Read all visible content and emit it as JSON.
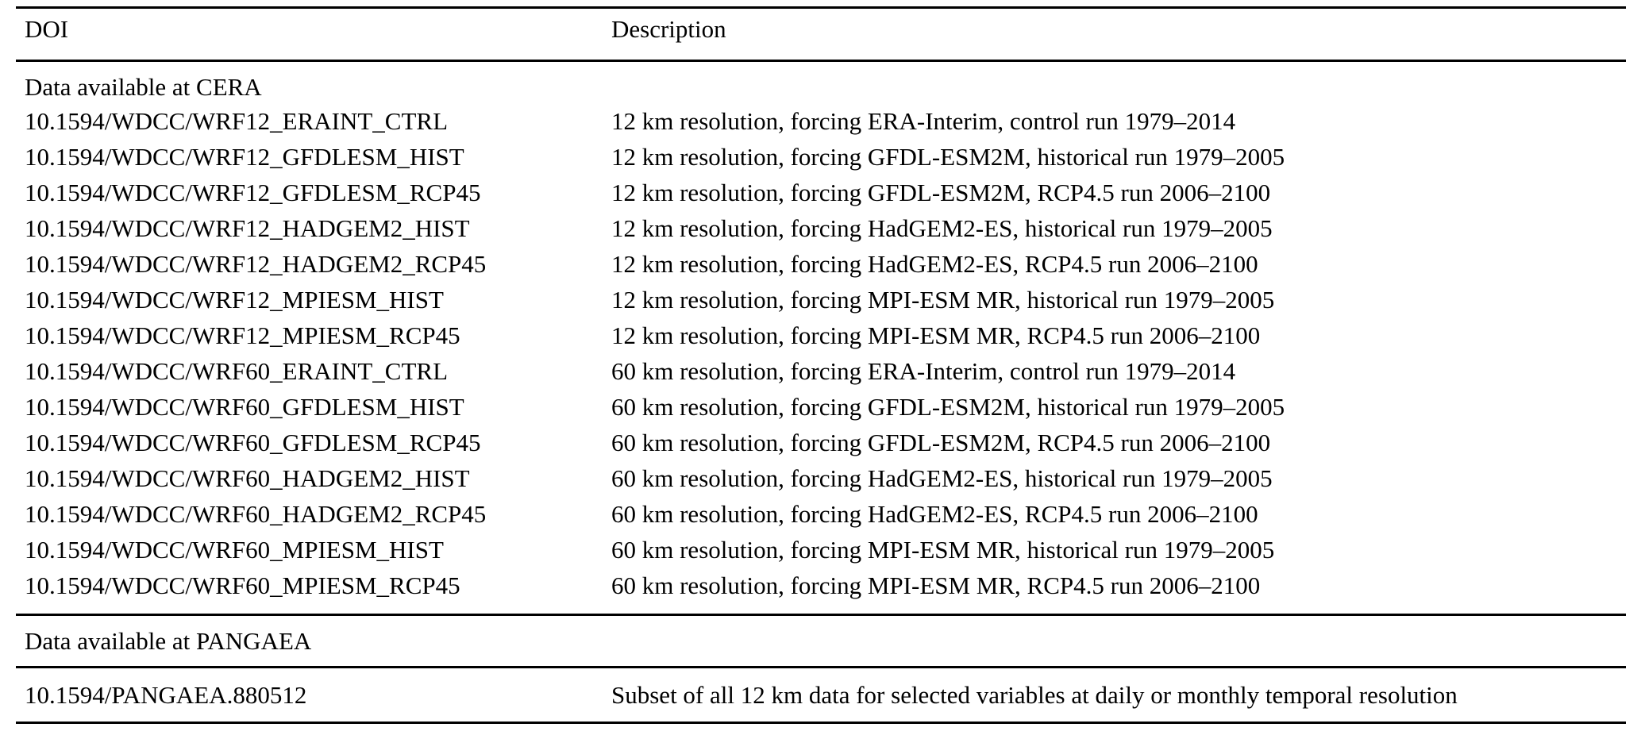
{
  "page": {
    "background": "#ffffff",
    "text_color": "#000000",
    "rule_color": "#000000"
  },
  "table": {
    "columns": [
      {
        "key": "doi",
        "label": "DOI"
      },
      {
        "key": "description",
        "label": "Description"
      }
    ],
    "sections": [
      {
        "title": "Data available at CERA",
        "rows": [
          {
            "doi": "10.1594/WDCC/WRF12_ERAINT_CTRL",
            "description": "12 km resolution, forcing ERA-Interim, control run 1979–2014"
          },
          {
            "doi": "10.1594/WDCC/WRF12_GFDLESM_HIST",
            "description": "12 km resolution, forcing GFDL-ESM2M, historical run 1979–2005"
          },
          {
            "doi": "10.1594/WDCC/WRF12_GFDLESM_RCP45",
            "description": "12 km resolution, forcing GFDL-ESM2M, RCP4.5 run 2006–2100"
          },
          {
            "doi": "10.1594/WDCC/WRF12_HADGEM2_HIST",
            "description": "12 km resolution, forcing HadGEM2-ES, historical run 1979–2005"
          },
          {
            "doi": "10.1594/WDCC/WRF12_HADGEM2_RCP45",
            "description": "12 km resolution, forcing HadGEM2-ES, RCP4.5 run 2006–2100"
          },
          {
            "doi": "10.1594/WDCC/WRF12_MPIESM_HIST",
            "description": "12 km resolution, forcing MPI-ESM MR, historical run 1979–2005"
          },
          {
            "doi": "10.1594/WDCC/WRF12_MPIESM_RCP45",
            "description": "12 km resolution, forcing MPI-ESM MR, RCP4.5 run 2006–2100"
          },
          {
            "doi": "10.1594/WDCC/WRF60_ERAINT_CTRL",
            "description": "60 km resolution, forcing ERA-Interim, control run 1979–2014"
          },
          {
            "doi": "10.1594/WDCC/WRF60_GFDLESM_HIST",
            "description": "60 km resolution, forcing GFDL-ESM2M, historical run 1979–2005"
          },
          {
            "doi": "10.1594/WDCC/WRF60_GFDLESM_RCP45",
            "description": "60 km resolution, forcing GFDL-ESM2M, RCP4.5 run 2006–2100"
          },
          {
            "doi": "10.1594/WDCC/WRF60_HADGEM2_HIST",
            "description": "60 km resolution, forcing HadGEM2-ES, historical run 1979–2005"
          },
          {
            "doi": "10.1594/WDCC/WRF60_HADGEM2_RCP45",
            "description": "60 km resolution, forcing HadGEM2-ES, RCP4.5 run 2006–2100"
          },
          {
            "doi": "10.1594/WDCC/WRF60_MPIESM_HIST",
            "description": "60 km resolution, forcing MPI-ESM MR, historical run 1979–2005"
          },
          {
            "doi": "10.1594/WDCC/WRF60_MPIESM_RCP45",
            "description": "60 km resolution, forcing MPI-ESM MR, RCP4.5 run 2006–2100"
          }
        ]
      },
      {
        "title": "Data available at PANGAEA",
        "rows": [
          {
            "doi": "10.1594/PANGAEA.880512",
            "description": "Subset of all 12 km data for selected variables at daily or monthly temporal resolution"
          }
        ]
      }
    ]
  }
}
